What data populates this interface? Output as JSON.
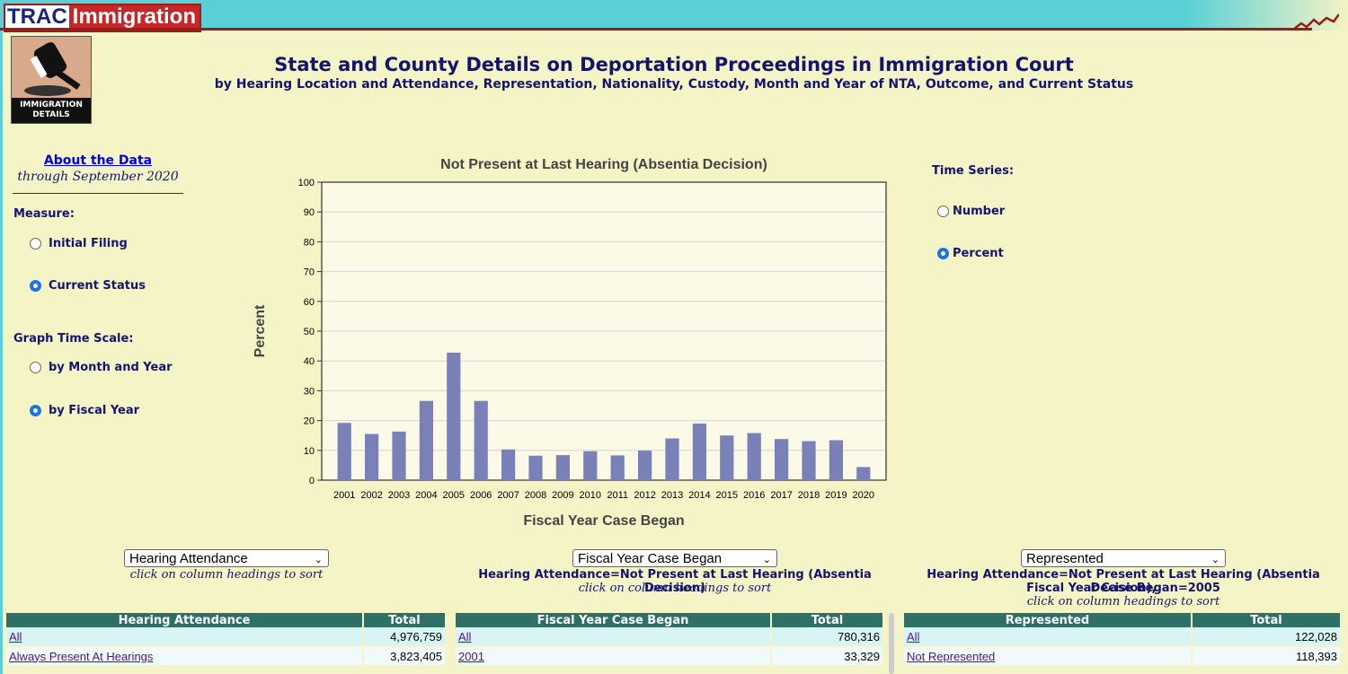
{
  "brand": {
    "trac": "TRAC",
    "immigration": "Immigration"
  },
  "badge": {
    "caption_line1": "IMMIGRATION",
    "caption_line2": "DETAILS"
  },
  "header": {
    "title": "State and County Details on Deportation Proceedings in Immigration Court",
    "subtitle": "by Hearing Location and Attendance, Representation, Nationality, Custody, Month and Year of NTA, Outcome, and Current Status"
  },
  "about": {
    "link": "About the Data",
    "through": "through September 2020"
  },
  "measure": {
    "label": "Measure:",
    "options": [
      "Initial Filing",
      "Current Status"
    ],
    "selected": "Current Status"
  },
  "time_scale": {
    "label": "Graph Time Scale:",
    "options": [
      "by Month and Year",
      "by Fiscal Year"
    ],
    "selected": "by Fiscal Year"
  },
  "time_series": {
    "label": "Time Series:",
    "options": [
      "Number",
      "Percent"
    ],
    "selected": "Percent"
  },
  "colors": {
    "bar": "#7a80b8",
    "plot_bg": "#fafae6",
    "header_teal": "#2e7068",
    "brand_red": "#c62828"
  },
  "chart_data": {
    "type": "bar",
    "title": "Not Present at Last Hearing (Absentia Decision)",
    "xlabel": "Fiscal Year Case Began",
    "ylabel": "Percent",
    "ylim": [
      0,
      100
    ],
    "yticks": [
      0,
      10,
      20,
      30,
      40,
      50,
      60,
      70,
      80,
      90,
      100
    ],
    "grid": true,
    "categories": [
      "2001",
      "2002",
      "2003",
      "2004",
      "2005",
      "2006",
      "2007",
      "2008",
      "2009",
      "2010",
      "2011",
      "2012",
      "2013",
      "2014",
      "2015",
      "2016",
      "2017",
      "2018",
      "2019",
      "2020"
    ],
    "values": [
      19.2,
      15.5,
      16.3,
      26.6,
      42.8,
      26.6,
      10.3,
      8.2,
      8.4,
      9.7,
      8.3,
      9.9,
      14.0,
      19.0,
      15.0,
      15.8,
      13.8,
      13.1,
      13.4,
      4.4
    ]
  },
  "panels": [
    {
      "select": "Hearing Attendance",
      "filter": "",
      "note": "click on column headings to sort",
      "col1": "Hearing Attendance",
      "col2": "Total",
      "rows": [
        {
          "label": "All",
          "total": "4,976,759"
        },
        {
          "label": "Always Present At Hearings",
          "total": "3,823,405"
        }
      ]
    },
    {
      "select": "Fiscal Year Case Began",
      "filter": "Hearing Attendance=Not Present at Last Hearing (Absentia Decision)",
      "note": "click on column headings to sort",
      "col1": "Fiscal Year Case Began",
      "col2": "Total",
      "rows": [
        {
          "label": "All",
          "total": "780,316"
        },
        {
          "label": "2001",
          "total": "33,329"
        }
      ]
    },
    {
      "select": "Represented",
      "filter": "Hearing Attendance=Not Present at Last Hearing (Absentia Decision),",
      "filter2": "Fiscal Year Case Began=2005",
      "note": "click on column headings to sort",
      "col1": "Represented",
      "col2": "Total",
      "rows": [
        {
          "label": "All",
          "total": "122,028"
        },
        {
          "label": "Not Represented",
          "total": "118,393"
        }
      ]
    }
  ]
}
